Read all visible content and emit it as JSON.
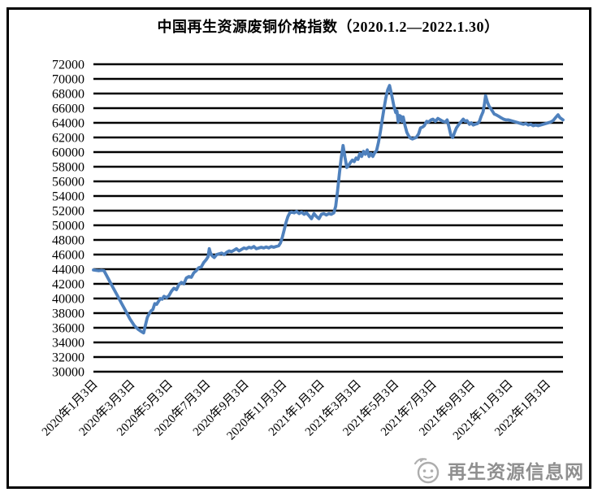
{
  "title": "中国再生资源废铜价格指数（2020.1.2—2022.1.30）",
  "watermark": {
    "label": "再生资源信息网",
    "icon": "recycle-site-logo",
    "color": "#8f8f8f"
  },
  "chart_data": {
    "type": "line",
    "title": "中国再生资源废铜价格指数（2020.1.2—2022.1.30）",
    "xlabel": "",
    "ylabel": "",
    "ylim": [
      30000,
      72000
    ],
    "y_tick_step": 2000,
    "y_ticks": [
      72000,
      70000,
      68000,
      66000,
      64000,
      62000,
      60000,
      58000,
      56000,
      54000,
      52000,
      50000,
      48000,
      46000,
      44000,
      42000,
      40000,
      38000,
      36000,
      34000,
      32000,
      30000
    ],
    "x_tick_labels": [
      "2020年1月3日",
      "2020年3月3日",
      "2020年5月3日",
      "2020年7月3日",
      "2020年9月3日",
      "2020年11月3日",
      "2021年1月3日",
      "2021年3月3日",
      "2021年5月3日",
      "2021年7月3日",
      "2021年9月3日",
      "2021年11月3日",
      "2022年1月3日"
    ],
    "x_tick_days": [
      0,
      60,
      121,
      182,
      244,
      305,
      366,
      425,
      486,
      547,
      609,
      670,
      731
    ],
    "x_range_days": [
      0,
      758
    ],
    "grid": "horizontal-only",
    "grid_color": "#000000",
    "legend": "none",
    "line_color": "#4F81BD",
    "series": [
      {
        "name": "废铜价格指数",
        "points": [
          [
            0,
            43900
          ],
          [
            4,
            43850
          ],
          [
            9,
            43800
          ],
          [
            13,
            43850
          ],
          [
            17,
            43800
          ],
          [
            24,
            42700
          ],
          [
            31,
            41600
          ],
          [
            38,
            40500
          ],
          [
            45,
            39400
          ],
          [
            52,
            38300
          ],
          [
            59,
            37200
          ],
          [
            66,
            36300
          ],
          [
            72,
            35800
          ],
          [
            77,
            35500
          ],
          [
            81,
            35300
          ],
          [
            84,
            36400
          ],
          [
            87,
            37400
          ],
          [
            90,
            37900
          ],
          [
            93,
            38300
          ],
          [
            96,
            38500
          ],
          [
            99,
            39300
          ],
          [
            102,
            39200
          ],
          [
            105,
            39600
          ],
          [
            108,
            40000
          ],
          [
            111,
            39900
          ],
          [
            114,
            40300
          ],
          [
            118,
            40100
          ],
          [
            122,
            40400
          ],
          [
            126,
            41000
          ],
          [
            130,
            41400
          ],
          [
            134,
            41200
          ],
          [
            138,
            41900
          ],
          [
            142,
            42200
          ],
          [
            146,
            42000
          ],
          [
            150,
            42800
          ],
          [
            154,
            43000
          ],
          [
            158,
            42900
          ],
          [
            162,
            43500
          ],
          [
            166,
            43800
          ],
          [
            170,
            44200
          ],
          [
            174,
            44300
          ],
          [
            178,
            44900
          ],
          [
            182,
            45300
          ],
          [
            185,
            45700
          ],
          [
            187,
            46800
          ],
          [
            189,
            46200
          ],
          [
            192,
            45800
          ],
          [
            195,
            45600
          ],
          [
            199,
            46000
          ],
          [
            203,
            46100
          ],
          [
            207,
            46200
          ],
          [
            211,
            46000
          ],
          [
            215,
            46300
          ],
          [
            219,
            46500
          ],
          [
            223,
            46400
          ],
          [
            227,
            46600
          ],
          [
            231,
            46800
          ],
          [
            235,
            46500
          ],
          [
            239,
            46700
          ],
          [
            243,
            46900
          ],
          [
            247,
            46800
          ],
          [
            251,
            47000
          ],
          [
            255,
            46900
          ],
          [
            259,
            47100
          ],
          [
            263,
            46800
          ],
          [
            267,
            46900
          ],
          [
            271,
            47000
          ],
          [
            275,
            46900
          ],
          [
            279,
            47050
          ],
          [
            283,
            46900
          ],
          [
            287,
            47100
          ],
          [
            291,
            47000
          ],
          [
            295,
            47100
          ],
          [
            299,
            47200
          ],
          [
            302,
            47600
          ],
          [
            305,
            48400
          ],
          [
            308,
            49400
          ],
          [
            311,
            50400
          ],
          [
            314,
            51200
          ],
          [
            317,
            51700
          ],
          [
            320,
            51800
          ],
          [
            324,
            51700
          ],
          [
            328,
            51900
          ],
          [
            332,
            51600
          ],
          [
            336,
            51800
          ],
          [
            340,
            51500
          ],
          [
            344,
            51700
          ],
          [
            348,
            51300
          ],
          [
            352,
            50900
          ],
          [
            356,
            51600
          ],
          [
            360,
            51200
          ],
          [
            364,
            50900
          ],
          [
            368,
            51500
          ],
          [
            372,
            51600
          ],
          [
            376,
            51400
          ],
          [
            380,
            51600
          ],
          [
            384,
            51500
          ],
          [
            388,
            51700
          ],
          [
            391,
            52600
          ],
          [
            394,
            54600
          ],
          [
            397,
            57000
          ],
          [
            400,
            59200
          ],
          [
            403,
            60900
          ],
          [
            406,
            59300
          ],
          [
            409,
            57900
          ],
          [
            412,
            58200
          ],
          [
            415,
            58600
          ],
          [
            418,
            58900
          ],
          [
            421,
            58700
          ],
          [
            424,
            59200
          ],
          [
            427,
            59000
          ],
          [
            430,
            59800
          ],
          [
            433,
            59400
          ],
          [
            436,
            60100
          ],
          [
            439,
            59700
          ],
          [
            442,
            60300
          ],
          [
            445,
            59400
          ],
          [
            448,
            59800
          ],
          [
            451,
            59400
          ],
          [
            454,
            59900
          ],
          [
            457,
            60200
          ],
          [
            460,
            61300
          ],
          [
            463,
            62700
          ],
          [
            466,
            64300
          ],
          [
            469,
            65900
          ],
          [
            472,
            67400
          ],
          [
            475,
            68500
          ],
          [
            478,
            69100
          ],
          [
            482,
            67600
          ],
          [
            485,
            66300
          ],
          [
            488,
            65400
          ],
          [
            490,
            65600
          ],
          [
            492,
            64100
          ],
          [
            494,
            65000
          ],
          [
            496,
            64900
          ],
          [
            498,
            64200
          ],
          [
            500,
            64800
          ],
          [
            503,
            63600
          ],
          [
            506,
            62700
          ],
          [
            509,
            62200
          ],
          [
            512,
            61900
          ],
          [
            515,
            61800
          ],
          [
            518,
            61900
          ],
          [
            521,
            62000
          ],
          [
            525,
            62500
          ],
          [
            528,
            63300
          ],
          [
            531,
            63400
          ],
          [
            534,
            63600
          ],
          [
            538,
            64200
          ],
          [
            541,
            64100
          ],
          [
            545,
            64400
          ],
          [
            548,
            64500
          ],
          [
            552,
            64200
          ],
          [
            556,
            64600
          ],
          [
            560,
            64400
          ],
          [
            564,
            64200
          ],
          [
            568,
            64100
          ],
          [
            571,
            64400
          ],
          [
            574,
            63400
          ],
          [
            577,
            62300
          ],
          [
            580,
            62000
          ],
          [
            583,
            62700
          ],
          [
            586,
            63300
          ],
          [
            590,
            63800
          ],
          [
            594,
            64200
          ],
          [
            597,
            64500
          ],
          [
            600,
            64200
          ],
          [
            603,
            64300
          ],
          [
            607,
            63800
          ],
          [
            610,
            64000
          ],
          [
            613,
            63700
          ],
          [
            616,
            63800
          ],
          [
            620,
            63900
          ],
          [
            623,
            64200
          ],
          [
            626,
            64900
          ],
          [
            629,
            65500
          ],
          [
            631,
            66500
          ],
          [
            633,
            67700
          ],
          [
            636,
            66800
          ],
          [
            639,
            66200
          ],
          [
            641,
            66000
          ],
          [
            644,
            65600
          ],
          [
            647,
            65200
          ],
          [
            650,
            65100
          ],
          [
            654,
            64900
          ],
          [
            658,
            64700
          ],
          [
            662,
            64500
          ],
          [
            666,
            64400
          ],
          [
            670,
            64400
          ],
          [
            674,
            64300
          ],
          [
            678,
            64200
          ],
          [
            682,
            64100
          ],
          [
            686,
            64000
          ],
          [
            690,
            63900
          ],
          [
            694,
            63800
          ],
          [
            698,
            63900
          ],
          [
            702,
            63700
          ],
          [
            706,
            63800
          ],
          [
            710,
            63600
          ],
          [
            714,
            63700
          ],
          [
            718,
            63600
          ],
          [
            722,
            63700
          ],
          [
            726,
            63800
          ],
          [
            730,
            63900
          ],
          [
            734,
            64000
          ],
          [
            738,
            64100
          ],
          [
            742,
            64300
          ],
          [
            746,
            64700
          ],
          [
            750,
            65100
          ],
          [
            753,
            64700
          ],
          [
            758,
            64400
          ]
        ]
      }
    ]
  }
}
